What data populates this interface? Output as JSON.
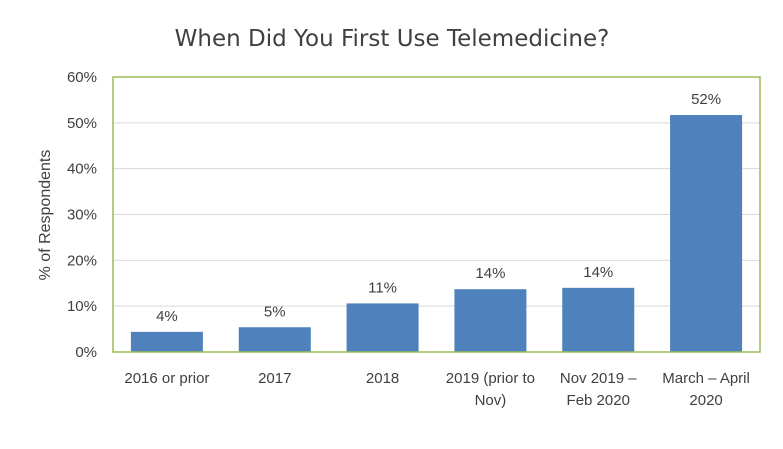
{
  "chart_data": {
    "type": "bar",
    "title": "When Did You First Use Telemedicine?",
    "xlabel": "",
    "ylabel": "% of Respondents",
    "categories": [
      [
        "2016 or prior"
      ],
      [
        "2017"
      ],
      [
        "2018"
      ],
      [
        "2019 (prior to",
        "Nov)"
      ],
      [
        "Nov 2019 –",
        "Feb 2020"
      ],
      [
        "March – April",
        "2020"
      ]
    ],
    "values": [
      4.4,
      5.4,
      10.6,
      13.7,
      14,
      51.7
    ],
    "data_labels": [
      "4%",
      "5%",
      "11%",
      "14%",
      "14%",
      "52%"
    ],
    "ylim": [
      0,
      60
    ],
    "yticks": [
      0,
      10,
      20,
      30,
      40,
      50,
      60
    ],
    "ytick_labels": [
      "0%",
      "10%",
      "20%",
      "30%",
      "40%",
      "50%",
      "60%"
    ],
    "grid": true,
    "legend": "none",
    "colors": {
      "bar": "#4f81bd",
      "plot_border": "#9bbb59",
      "gridline": "#d9d9d9",
      "text": "#404040"
    }
  }
}
